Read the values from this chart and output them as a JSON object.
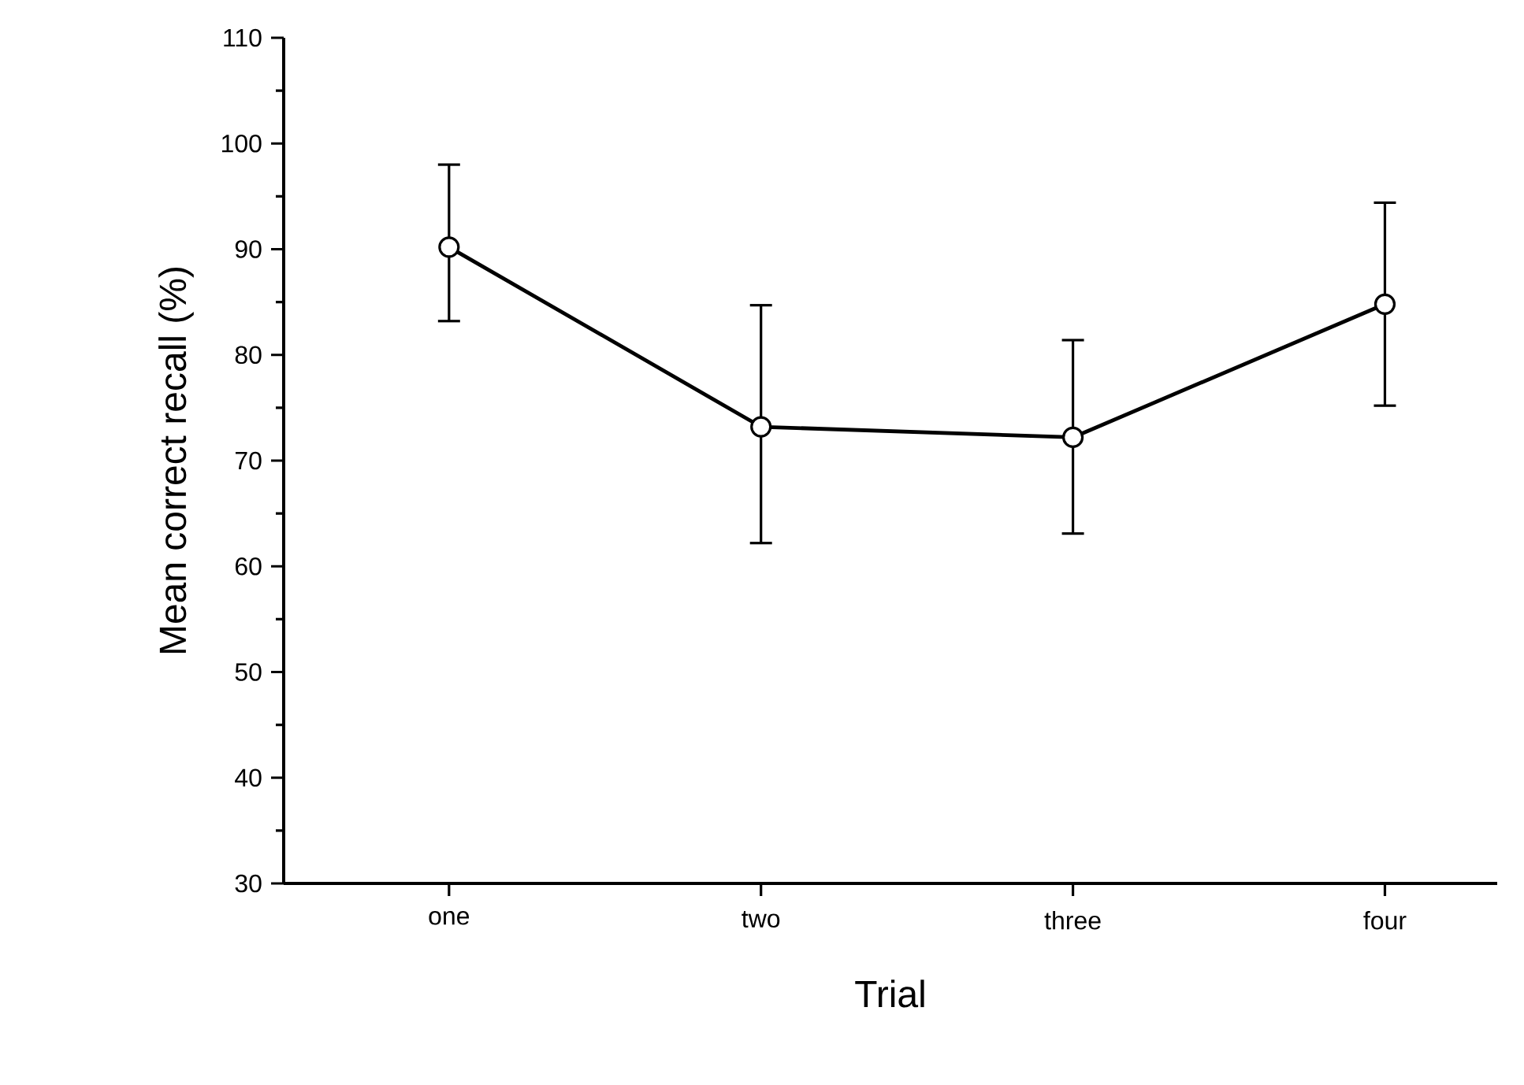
{
  "chart_data": {
    "type": "line",
    "xlabel": "Trial",
    "ylabel": "Mean correct recall (%)",
    "categories": [
      "one",
      "two",
      "three",
      "four"
    ],
    "series": [
      {
        "color": "#000000",
        "values": [
          90.2,
          73.2,
          72.2,
          84.8
        ],
        "errors": [
          [
            83.2,
            98.0
          ],
          [
            62.2,
            84.7
          ],
          [
            63.1,
            81.4
          ],
          [
            75.2,
            94.4
          ]
        ]
      }
    ],
    "ylim": [
      30,
      110
    ],
    "yticks": [
      30,
      40,
      50,
      60,
      70,
      80,
      90,
      100,
      110
    ],
    "marker": "circle",
    "line_style": "solid",
    "grid": false
  }
}
